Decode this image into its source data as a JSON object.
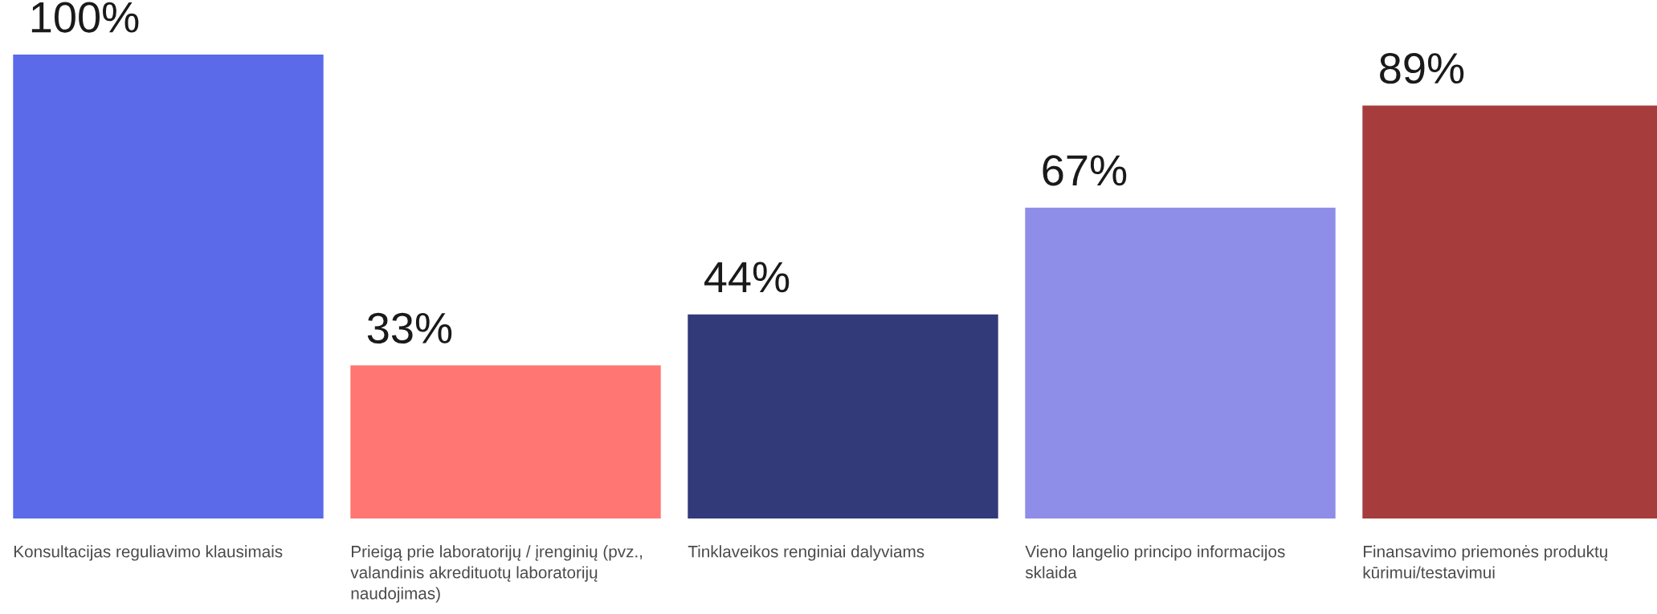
{
  "chart_data": {
    "type": "bar",
    "categories": [
      "Konsultacijas reguliavimo klausimais",
      "Prieigą prie laboratorijų / įrenginių (pvz., valandinis akredituotų laboratorijų naudojimas)",
      "Tinklaveikos renginiai dalyviams",
      "Vieno langelio principo informacijos sklaida",
      "Finansavimo priemonės produktų kūrimui/testavimui"
    ],
    "values": [
      100,
      33,
      44,
      67,
      89
    ],
    "colors": [
      "#5a6ae8",
      "#ff7672",
      "#323a7a",
      "#8e8de8",
      "#a63c3b"
    ],
    "value_labels": [
      "100%",
      "33%",
      "44%",
      "67%",
      "89%"
    ]
  }
}
